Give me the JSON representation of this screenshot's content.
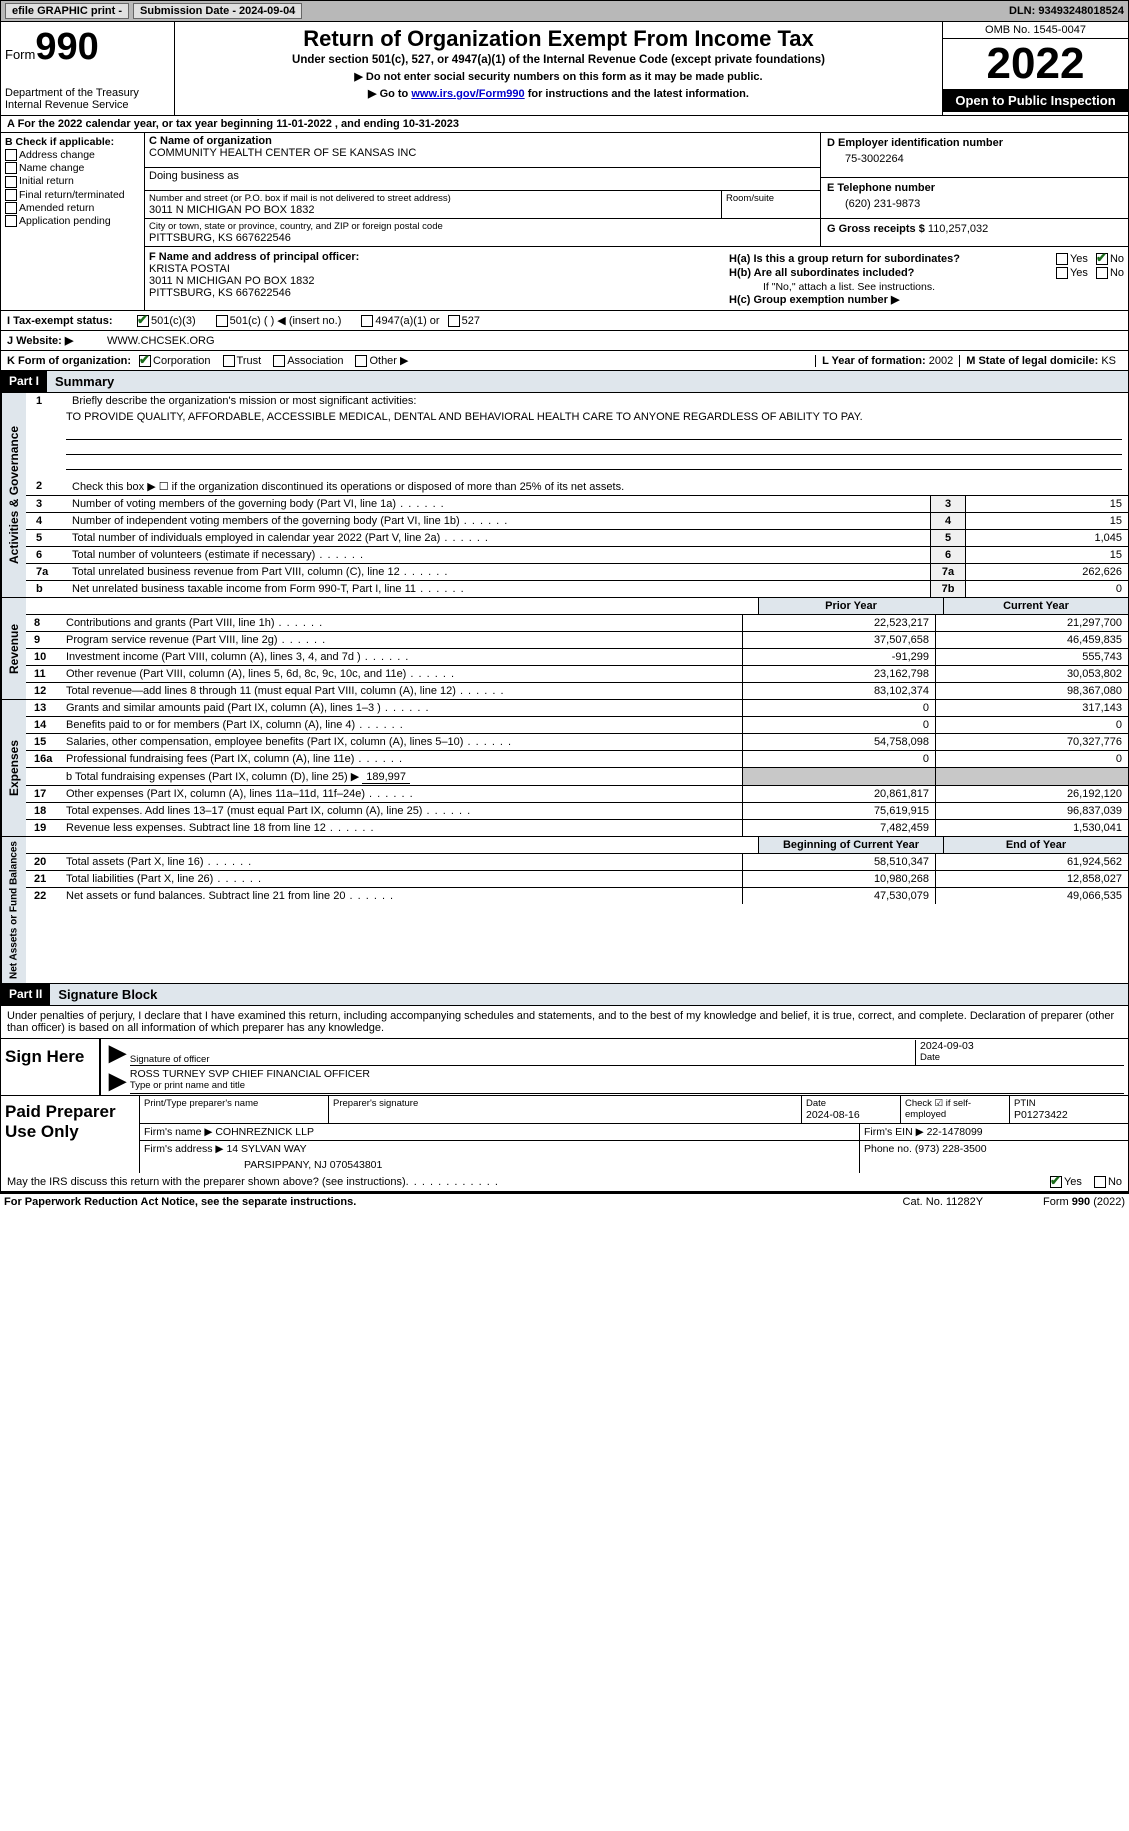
{
  "topbar": {
    "efile": "efile GRAPHIC print -",
    "subdate_label": "Submission Date - 2024-09-04",
    "dln": "DLN: 93493248018524"
  },
  "header": {
    "form_word": "Form",
    "form_num": "990",
    "dept": "Department of the Treasury",
    "irs_line": "Internal Revenue Service",
    "title": "Return of Organization Exempt From Income Tax",
    "sub1": "Under section 501(c), 527, or 4947(a)(1) of the Internal Revenue Code (except private foundations)",
    "sub2": "▶ Do not enter social security numbers on this form as it may be made public.",
    "sub3_pre": "▶ Go to ",
    "sub3_link": "www.irs.gov/Form990",
    "sub3_post": " for instructions and the latest information.",
    "omb": "OMB No. 1545-0047",
    "year": "2022",
    "inspection": "Open to Public Inspection"
  },
  "row_a": {
    "text": "A For the 2022 calendar year, or tax year beginning 11-01-2022   , and ending 10-31-2023"
  },
  "col_b": {
    "title": "B Check if applicable:",
    "addr": "Address change",
    "name": "Name change",
    "init": "Initial return",
    "final": "Final return/terminated",
    "amend": "Amended return",
    "app": "Application pending"
  },
  "box_c": {
    "c_label": "C Name of organization",
    "org_name": "COMMUNITY HEALTH CENTER OF SE KANSAS INC",
    "dba": "Doing business as",
    "addr_label": "Number and street (or P.O. box if mail is not delivered to street address)",
    "room": "Room/suite",
    "addr": "3011 N MICHIGAN PO BOX 1832",
    "city_label": "City or town, state or province, country, and ZIP or foreign postal code",
    "city": "PITTSBURG, KS  667622546"
  },
  "box_d": {
    "d_label": "D Employer identification number",
    "ein": "75-3002264",
    "e_label": "E Telephone number",
    "phone": "(620) 231-9873",
    "g_label": "G Gross receipts $",
    "gross": "110,257,032"
  },
  "box_f": {
    "f_label": "F  Name and address of principal officer:",
    "name": "KRISTA POSTAI",
    "addr1": "3011 N MICHIGAN PO BOX 1832",
    "addr2": "PITTSBURG, KS  667622546"
  },
  "box_h": {
    "ha_q": "H(a)  Is this a group return for subordinates?",
    "hb_q": "H(b)  Are all subordinates included?",
    "hb_note": "If \"No,\" attach a list. See instructions.",
    "hc": "H(c)  Group exemption number ▶",
    "yes": "Yes",
    "no": "No"
  },
  "row_i": {
    "label": "I   Tax-exempt status:",
    "o1": "501(c)(3)",
    "o2": "501(c) (  ) ◀ (insert no.)",
    "o3": "4947(a)(1) or",
    "o4": "527"
  },
  "row_j": {
    "label": "J   Website: ▶",
    "val": "WWW.CHCSEK.ORG"
  },
  "row_k": {
    "label": "K Form of organization:",
    "corp": "Corporation",
    "trust": "Trust",
    "assoc": "Association",
    "other": "Other ▶",
    "l_label": "L Year of formation:",
    "l_val": "2002",
    "m_label": "M State of legal domicile:",
    "m_val": "KS"
  },
  "part1": {
    "hdr": "Part I",
    "title": "Summary",
    "vlabel1": "Activities & Governance",
    "vlabel2": "Revenue",
    "vlabel3": "Expenses",
    "vlabel4": "Net Assets or Fund Balances",
    "line1_label": "Briefly describe the organization's mission or most significant activities:",
    "mission": "TO PROVIDE QUALITY, AFFORDABLE, ACCESSIBLE MEDICAL, DENTAL AND BEHAVIORAL HEALTH CARE TO ANYONE REGARDLESS OF ABILITY TO PAY.",
    "line2": "Check this box ▶ ☐  if the organization discontinued its operations or disposed of more than 25% of its net assets.",
    "rows_ag": [
      {
        "n": "3",
        "label": "Number of voting members of the governing body (Part VI, line 1a)",
        "box": "3",
        "val": "15"
      },
      {
        "n": "4",
        "label": "Number of independent voting members of the governing body (Part VI, line 1b)",
        "box": "4",
        "val": "15"
      },
      {
        "n": "5",
        "label": "Total number of individuals employed in calendar year 2022 (Part V, line 2a)",
        "box": "5",
        "val": "1,045"
      },
      {
        "n": "6",
        "label": "Total number of volunteers (estimate if necessary)",
        "box": "6",
        "val": "15"
      },
      {
        "n": "7a",
        "label": "Total unrelated business revenue from Part VIII, column (C), line 12",
        "box": "7a",
        "val": "262,626"
      },
      {
        "n": "b",
        "label": "Net unrelated business taxable income from Form 990-T, Part I, line 11",
        "box": "7b",
        "val": "0"
      }
    ],
    "col_hdr1": "Prior Year",
    "col_hdr2": "Current Year",
    "rev": [
      {
        "n": "8",
        "label": "Contributions and grants (Part VIII, line 1h)",
        "v1": "22,523,217",
        "v2": "21,297,700"
      },
      {
        "n": "9",
        "label": "Program service revenue (Part VIII, line 2g)",
        "v1": "37,507,658",
        "v2": "46,459,835"
      },
      {
        "n": "10",
        "label": "Investment income (Part VIII, column (A), lines 3, 4, and 7d )",
        "v1": "-91,299",
        "v2": "555,743"
      },
      {
        "n": "11",
        "label": "Other revenue (Part VIII, column (A), lines 5, 6d, 8c, 9c, 10c, and 11e)",
        "v1": "23,162,798",
        "v2": "30,053,802"
      },
      {
        "n": "12",
        "label": "Total revenue—add lines 8 through 11 (must equal Part VIII, column (A), line 12)",
        "v1": "83,102,374",
        "v2": "98,367,080"
      }
    ],
    "exp": [
      {
        "n": "13",
        "label": "Grants and similar amounts paid (Part IX, column (A), lines 1–3 )",
        "v1": "0",
        "v2": "317,143"
      },
      {
        "n": "14",
        "label": "Benefits paid to or for members (Part IX, column (A), line 4)",
        "v1": "0",
        "v2": "0"
      },
      {
        "n": "15",
        "label": "Salaries, other compensation, employee benefits (Part IX, column (A), lines 5–10)",
        "v1": "54,758,098",
        "v2": "70,327,776"
      },
      {
        "n": "16a",
        "label": "Professional fundraising fees (Part IX, column (A), line 11e)",
        "v1": "0",
        "v2": "0"
      }
    ],
    "line16b_pre": "b   Total fundraising expenses (Part IX, column (D), line 25) ▶",
    "line16b_val": "189,997",
    "exp2": [
      {
        "n": "17",
        "label": "Other expenses (Part IX, column (A), lines 11a–11d, 11f–24e)",
        "v1": "20,861,817",
        "v2": "26,192,120"
      },
      {
        "n": "18",
        "label": "Total expenses. Add lines 13–17 (must equal Part IX, column (A), line 25)",
        "v1": "75,619,915",
        "v2": "96,837,039"
      },
      {
        "n": "19",
        "label": "Revenue less expenses. Subtract line 18 from line 12",
        "v1": "7,482,459",
        "v2": "1,530,041"
      }
    ],
    "col_hdr3": "Beginning of Current Year",
    "col_hdr4": "End of Year",
    "net": [
      {
        "n": "20",
        "label": "Total assets (Part X, line 16)",
        "v1": "58,510,347",
        "v2": "61,924,562"
      },
      {
        "n": "21",
        "label": "Total liabilities (Part X, line 26)",
        "v1": "10,980,268",
        "v2": "12,858,027"
      },
      {
        "n": "22",
        "label": "Net assets or fund balances. Subtract line 21 from line 20",
        "v1": "47,530,079",
        "v2": "49,066,535"
      }
    ]
  },
  "part2": {
    "hdr": "Part II",
    "title": "Signature Block",
    "intro": "Under penalties of perjury, I declare that I have examined this return, including accompanying schedules and statements, and to the best of my knowledge and belief, it is true, correct, and complete. Declaration of preparer (other than officer) is based on all information of which preparer has any knowledge.",
    "sign_here": "Sign Here",
    "sig_officer": "Signature of officer",
    "sig_date_label": "Date",
    "sig_date": "2024-09-03",
    "officer_name": "ROSS TURNEY  SVP CHIEF FINANCIAL OFFICER",
    "type_name": "Type or print name and title",
    "paid": "Paid Preparer Use Only",
    "p_name_label": "Print/Type preparer's name",
    "p_sig_label": "Preparer's signature",
    "p_date_label": "Date",
    "p_date": "2024-08-16",
    "p_check": "Check ☑ if self-employed",
    "ptin_label": "PTIN",
    "ptin": "P01273422",
    "firm_name_label": "Firm's name    ▶",
    "firm_name": "COHNREZNICK LLP",
    "firm_ein_label": "Firm's EIN ▶",
    "firm_ein": "22-1478099",
    "firm_addr_label": "Firm's address ▶",
    "firm_addr1": "14 SYLVAN WAY",
    "firm_addr2": "PARSIPPANY, NJ  070543801",
    "phone_label": "Phone no.",
    "phone": "(973) 228-3500",
    "discuss": "May the IRS discuss this return with the preparer shown above? (see instructions)",
    "yes": "Yes",
    "no": "No"
  },
  "footer": {
    "pra": "For Paperwork Reduction Act Notice, see the separate instructions.",
    "cat": "Cat. No. 11282Y",
    "form": "Form 990 (2022)"
  }
}
